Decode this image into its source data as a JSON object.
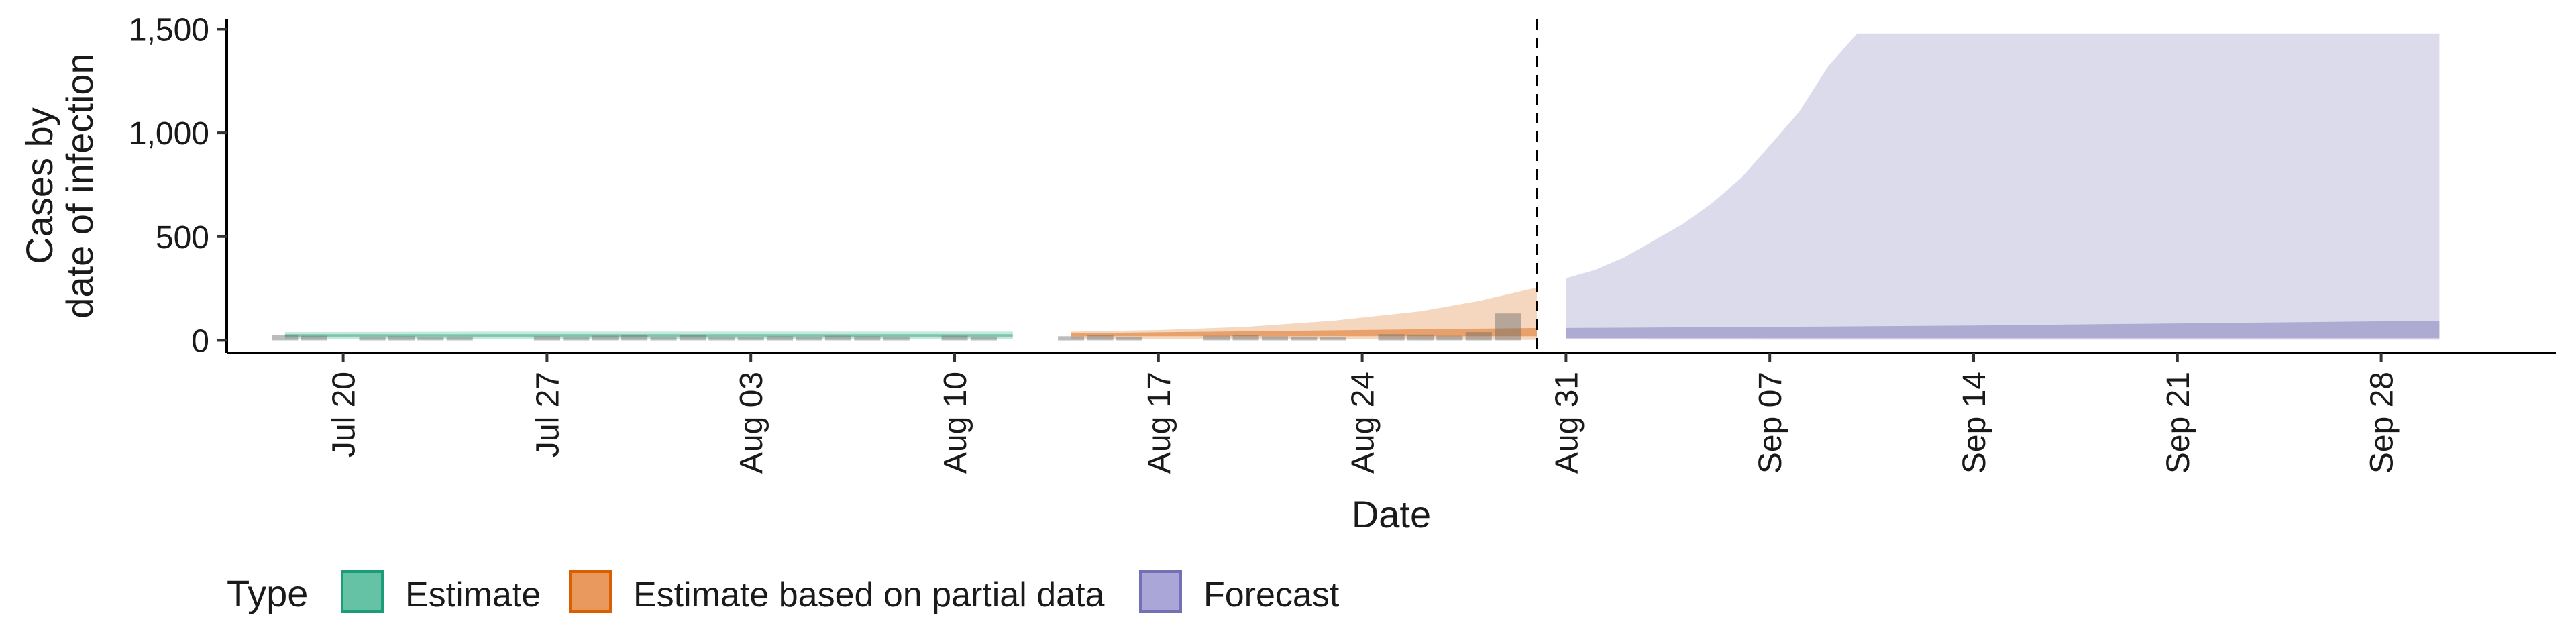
{
  "chart_data": {
    "type": "area",
    "x_axis": {
      "label": "Date",
      "range": [
        "2020-07-16",
        "2020-10-04"
      ],
      "ticks": [
        {
          "date": "2020-07-20",
          "label": "Jul 20"
        },
        {
          "date": "2020-07-27",
          "label": "Jul 27"
        },
        {
          "date": "2020-08-03",
          "label": "Aug 03"
        },
        {
          "date": "2020-08-10",
          "label": "Aug 10"
        },
        {
          "date": "2020-08-17",
          "label": "Aug 17"
        },
        {
          "date": "2020-08-24",
          "label": "Aug 24"
        },
        {
          "date": "2020-08-31",
          "label": "Aug 31"
        },
        {
          "date": "2020-09-07",
          "label": "Sep 07"
        },
        {
          "date": "2020-09-14",
          "label": "Sep 14"
        },
        {
          "date": "2020-09-21",
          "label": "Sep 21"
        },
        {
          "date": "2020-09-28",
          "label": "Sep 28"
        }
      ]
    },
    "y_axis": {
      "label": "Cases by\ndate of infection",
      "label_lines": [
        "Cases by",
        "date of infection"
      ],
      "range": [
        -60,
        1550
      ],
      "ticks": [
        {
          "value": 0,
          "label": "0"
        },
        {
          "value": 500,
          "label": "500"
        },
        {
          "value": 1000,
          "label": "1,000"
        },
        {
          "value": 1500,
          "label": "1,500"
        }
      ]
    },
    "grid": false,
    "estimate_date_line": "2020-08-30",
    "legend": {
      "title": "Type",
      "position": "bottom",
      "items": [
        {
          "label": "Estimate",
          "fill": "#66c2a5",
          "stroke": "#1b9e77"
        },
        {
          "label": "Estimate based on partial data",
          "fill": "#e9985e",
          "stroke": "#d95f02"
        },
        {
          "label": "Forecast",
          "fill": "#aaa6d8",
          "stroke": "#7570b3"
        }
      ]
    },
    "series": [
      {
        "name": "Estimate",
        "color": "#1b9e77",
        "outer": [
          {
            "x": "2020-07-18",
            "low": 8,
            "high": 40
          },
          {
            "x": "2020-07-25",
            "low": 8,
            "high": 42
          },
          {
            "x": "2020-08-01",
            "low": 8,
            "high": 42
          },
          {
            "x": "2020-08-08",
            "low": 8,
            "high": 42
          },
          {
            "x": "2020-08-12",
            "low": 8,
            "high": 42
          }
        ],
        "inner": [
          {
            "x": "2020-07-18",
            "low": 18,
            "high": 30
          },
          {
            "x": "2020-08-12",
            "low": 18,
            "high": 30
          }
        ]
      },
      {
        "name": "Estimate based on partial data",
        "color": "#d95f02",
        "outer": [
          {
            "x": "2020-08-14",
            "low": 8,
            "high": 42
          },
          {
            "x": "2020-08-17",
            "low": 7,
            "high": 50
          },
          {
            "x": "2020-08-20",
            "low": 6,
            "high": 65
          },
          {
            "x": "2020-08-23",
            "low": 5,
            "high": 95
          },
          {
            "x": "2020-08-26",
            "low": 4,
            "high": 140
          },
          {
            "x": "2020-08-28",
            "low": 3,
            "high": 190
          },
          {
            "x": "2020-08-30",
            "low": 2,
            "high": 255
          }
        ],
        "inner": [
          {
            "x": "2020-08-14",
            "low": 20,
            "high": 34
          },
          {
            "x": "2020-08-30",
            "low": 20,
            "high": 60
          }
        ]
      },
      {
        "name": "Forecast",
        "color": "#7570b3",
        "outer": [
          {
            "x": "2020-08-31",
            "low": 5,
            "high": 300
          },
          {
            "x": "2020-09-01",
            "low": 5,
            "high": 340
          },
          {
            "x": "2020-09-02",
            "low": 5,
            "high": 400
          },
          {
            "x": "2020-09-03",
            "low": 4,
            "high": 480
          },
          {
            "x": "2020-09-04",
            "low": 4,
            "high": 560
          },
          {
            "x": "2020-09-05",
            "low": 4,
            "high": 660
          },
          {
            "x": "2020-09-06",
            "low": 4,
            "high": 780
          },
          {
            "x": "2020-09-07",
            "low": 3,
            "high": 940
          },
          {
            "x": "2020-09-08",
            "low": 3,
            "high": 1100
          },
          {
            "x": "2020-09-09",
            "low": 3,
            "high": 1320
          },
          {
            "x": "2020-09-10",
            "low": 3,
            "high": 1480
          },
          {
            "x": "2020-09-30",
            "low": 3,
            "high": 1480
          }
        ],
        "inner": [
          {
            "x": "2020-08-31",
            "low": 10,
            "high": 60
          },
          {
            "x": "2020-09-07",
            "low": 10,
            "high": 65
          },
          {
            "x": "2020-09-14",
            "low": 10,
            "high": 72
          },
          {
            "x": "2020-09-21",
            "low": 10,
            "high": 82
          },
          {
            "x": "2020-09-30",
            "low": 10,
            "high": 95
          }
        ]
      }
    ],
    "reported_cases": [
      {
        "x": "2020-07-18",
        "value": 25
      },
      {
        "x": "2020-07-19",
        "value": 22
      },
      {
        "x": "2020-07-21",
        "value": 18
      },
      {
        "x": "2020-07-22",
        "value": 20
      },
      {
        "x": "2020-07-23",
        "value": 16
      },
      {
        "x": "2020-07-24",
        "value": 18
      },
      {
        "x": "2020-07-27",
        "value": 20
      },
      {
        "x": "2020-07-28",
        "value": 18
      },
      {
        "x": "2020-07-29",
        "value": 22
      },
      {
        "x": "2020-07-30",
        "value": 24
      },
      {
        "x": "2020-07-31",
        "value": 18
      },
      {
        "x": "2020-08-01",
        "value": 26
      },
      {
        "x": "2020-08-02",
        "value": 18
      },
      {
        "x": "2020-08-03",
        "value": 16
      },
      {
        "x": "2020-08-04",
        "value": 20
      },
      {
        "x": "2020-08-05",
        "value": 18
      },
      {
        "x": "2020-08-06",
        "value": 22
      },
      {
        "x": "2020-08-07",
        "value": 20
      },
      {
        "x": "2020-08-08",
        "value": 18
      },
      {
        "x": "2020-08-10",
        "value": 22
      },
      {
        "x": "2020-08-11",
        "value": 18
      },
      {
        "x": "2020-08-14",
        "value": 20
      },
      {
        "x": "2020-08-15",
        "value": 24
      },
      {
        "x": "2020-08-16",
        "value": 18
      },
      {
        "x": "2020-08-19",
        "value": 22
      },
      {
        "x": "2020-08-20",
        "value": 26
      },
      {
        "x": "2020-08-21",
        "value": 20
      },
      {
        "x": "2020-08-22",
        "value": 18
      },
      {
        "x": "2020-08-23",
        "value": 16
      },
      {
        "x": "2020-08-25",
        "value": 30
      },
      {
        "x": "2020-08-26",
        "value": 28
      },
      {
        "x": "2020-08-27",
        "value": 22
      },
      {
        "x": "2020-08-28",
        "value": 40
      },
      {
        "x": "2020-08-29",
        "value": 130
      }
    ]
  }
}
